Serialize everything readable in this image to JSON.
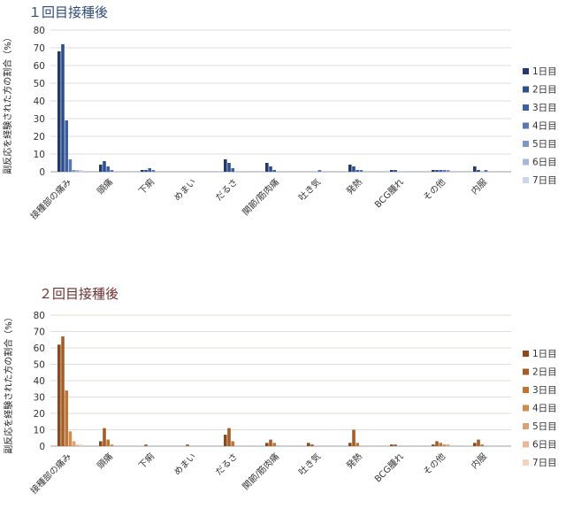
{
  "chart_data": [
    {
      "type": "bar",
      "title": "１回目接種後",
      "ylabel": "副反応を経験された方の割合（%）",
      "ylim": [
        0,
        80
      ],
      "yticks": [
        0,
        10,
        20,
        30,
        40,
        50,
        60,
        70,
        80
      ],
      "grid": true,
      "legend_position": "right",
      "categories": [
        "接種部の痛み",
        "頭痛",
        "下痢",
        "めまい",
        "だるさ",
        "関節/筋肉痛",
        "吐き気",
        "発熱",
        "BCG腫れ",
        "その他",
        "内服"
      ],
      "series": [
        {
          "name": "1日目",
          "color": "#1f3a6b",
          "values": [
            68,
            4,
            1,
            0,
            7,
            5,
            0,
            4,
            1,
            1,
            3
          ]
        },
        {
          "name": "2日目",
          "color": "#2d4f8e",
          "values": [
            72,
            6,
            1,
            0,
            5,
            3,
            0,
            3,
            1,
            1,
            1
          ]
        },
        {
          "name": "3日目",
          "color": "#3c5fa3",
          "values": [
            29,
            3,
            2,
            0,
            2,
            1,
            0,
            1,
            0,
            1,
            0
          ]
        },
        {
          "name": "4日目",
          "color": "#5877b5",
          "values": [
            7,
            1,
            1,
            0,
            0,
            0,
            1,
            1,
            0,
            1,
            1
          ]
        },
        {
          "name": "5日目",
          "color": "#7f97c7",
          "values": [
            1,
            0,
            0,
            0,
            0,
            0,
            0,
            0,
            0,
            1,
            0
          ]
        },
        {
          "name": "6日目",
          "color": "#a8b8d9",
          "values": [
            1,
            0,
            0,
            0,
            0,
            0,
            0,
            0,
            0,
            0,
            0
          ]
        },
        {
          "name": "7日目",
          "color": "#ccd6ea",
          "values": [
            1,
            0,
            0,
            0,
            0,
            0,
            0,
            0,
            0,
            0,
            0
          ]
        }
      ]
    },
    {
      "type": "bar",
      "title": "２回目接種後",
      "ylabel": "副反応を経験された方の割合（%）",
      "ylim": [
        0,
        80
      ],
      "yticks": [
        0,
        10,
        20,
        30,
        40,
        50,
        60,
        70,
        80
      ],
      "grid": true,
      "legend_position": "right",
      "categories": [
        "接種部の痛み",
        "頭痛",
        "下痢",
        "めまい",
        "だるさ",
        "関節/筋肉痛",
        "吐き気",
        "発熱",
        "BCG腫れ",
        "その他",
        "内服"
      ],
      "series": [
        {
          "name": "1日目",
          "color": "#8a4a1c",
          "values": [
            62,
            3,
            0,
            0,
            7,
            2,
            2,
            2,
            1,
            1,
            2
          ]
        },
        {
          "name": "2日目",
          "color": "#a65d25",
          "values": [
            67,
            11,
            1,
            1,
            11,
            4,
            1,
            10,
            1,
            3,
            4
          ]
        },
        {
          "name": "3日目",
          "color": "#bf7334",
          "values": [
            34,
            4,
            0,
            0,
            3,
            2,
            0,
            2,
            0,
            2,
            1
          ]
        },
        {
          "name": "4日目",
          "color": "#d08a4c",
          "values": [
            9,
            1,
            0,
            0,
            0,
            0,
            0,
            0,
            0,
            1,
            0
          ]
        },
        {
          "name": "5日目",
          "color": "#dda070",
          "values": [
            3,
            0,
            0,
            0,
            0,
            0,
            0,
            0,
            0,
            1,
            0
          ]
        },
        {
          "name": "6日目",
          "color": "#e8b998",
          "values": [
            1,
            0,
            0,
            0,
            0,
            0,
            0,
            0,
            0,
            0,
            0
          ]
        },
        {
          "name": "7日目",
          "color": "#f1d4bf",
          "values": [
            1,
            0,
            0,
            0,
            0,
            0,
            0,
            0,
            0,
            0,
            0
          ]
        }
      ]
    }
  ]
}
